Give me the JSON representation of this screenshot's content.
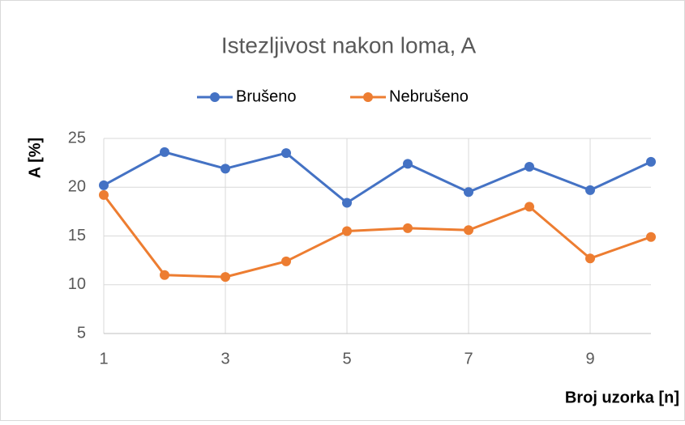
{
  "chart_data": {
    "type": "line",
    "title": "Istezljivost nakon loma, A",
    "x_label": "Broj uzorka [n]",
    "y_label": "A [%]",
    "x": [
      1,
      2,
      3,
      4,
      5,
      6,
      7,
      8,
      9,
      10
    ],
    "series": [
      {
        "name": "Brušeno",
        "color": "#4472c4",
        "values": [
          20.2,
          23.6,
          21.9,
          23.5,
          18.4,
          22.4,
          19.5,
          22.1,
          19.7,
          22.6
        ]
      },
      {
        "name": "Nebrušeno",
        "color": "#ed7d31",
        "values": [
          19.2,
          11.0,
          10.8,
          12.4,
          15.5,
          15.8,
          15.6,
          18.0,
          12.7,
          14.9
        ]
      }
    ],
    "xlim": [
      1,
      10
    ],
    "xticks": [
      1,
      3,
      5,
      7,
      9
    ],
    "ylim": [
      5,
      25
    ],
    "yticks": [
      5,
      10,
      15,
      20,
      25
    ],
    "grid": true,
    "legend": "top"
  }
}
